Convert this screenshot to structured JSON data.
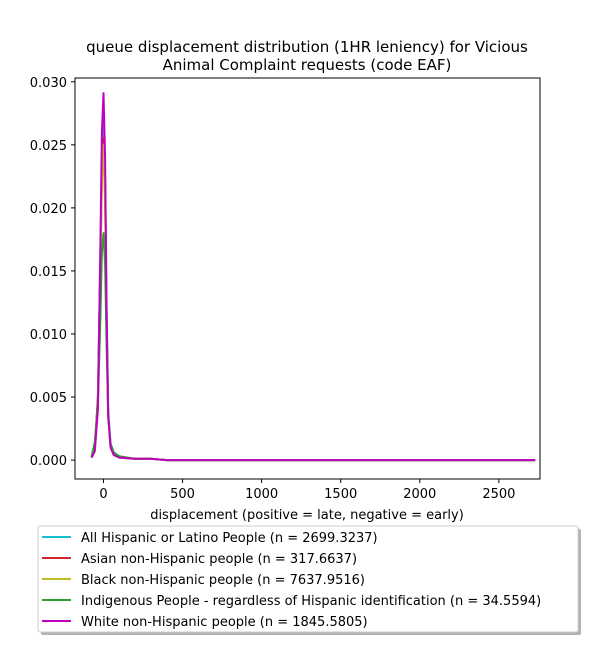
{
  "chart_data": {
    "type": "line",
    "title_lines": [
      "queue displacement distribution (1HR leniency) for Vicious",
      "Animal Complaint  requests (code EAF)"
    ],
    "xlabel": "displacement (positive = late, negative = early)",
    "ylabel": "",
    "xlim": [
      -180,
      2760
    ],
    "ylim": [
      -0.0015,
      0.0303
    ],
    "xticks": [
      0,
      500,
      1000,
      1500,
      2000,
      2500
    ],
    "xtick_labels": [
      "0",
      "500",
      "1000",
      "1500",
      "2000",
      "2500"
    ],
    "yticks": [
      0.0,
      0.005,
      0.01,
      0.015,
      0.02,
      0.025,
      0.03
    ],
    "ytick_labels": [
      "0.000",
      "0.005",
      "0.010",
      "0.015",
      "0.020",
      "0.025",
      "0.030"
    ],
    "grid": false,
    "legend_position": "below",
    "series": [
      {
        "name": "All Hispanic or Latino People (n = 2699.3237)",
        "color": "#17becf",
        "x": [
          -75,
          -55,
          -35,
          -20,
          -10,
          0,
          10,
          20,
          30,
          45,
          65,
          100,
          200,
          300,
          400,
          1000,
          2000,
          2730
        ],
        "y": [
          0.0002,
          0.0008,
          0.005,
          0.016,
          0.024,
          0.0265,
          0.022,
          0.012,
          0.004,
          0.0012,
          0.0004,
          0.0002,
          0.0001,
          0.0001,
          0.0,
          0.0,
          0.0,
          0.0
        ]
      },
      {
        "name": "Asian non-Hispanic people (n = 317.6637)",
        "color": "#d62728",
        "x": [
          -75,
          -55,
          -35,
          -20,
          -10,
          0,
          10,
          20,
          30,
          45,
          65,
          100,
          200,
          300,
          400,
          1000,
          2000,
          2730
        ],
        "y": [
          0.0002,
          0.0009,
          0.005,
          0.015,
          0.0225,
          0.0255,
          0.021,
          0.011,
          0.0035,
          0.001,
          0.0004,
          0.0002,
          0.0001,
          0.0001,
          0.0,
          0.0,
          0.0,
          0.0
        ]
      },
      {
        "name": "Black non-Hispanic people (n = 7637.9516)",
        "color": "#bcbd22",
        "x": [
          -75,
          -55,
          -35,
          -20,
          -10,
          0,
          10,
          20,
          30,
          45,
          65,
          100,
          200,
          300,
          400,
          1000,
          2000,
          2730
        ],
        "y": [
          0.0002,
          0.0008,
          0.0045,
          0.0145,
          0.022,
          0.025,
          0.0205,
          0.011,
          0.0035,
          0.0011,
          0.0004,
          0.0002,
          0.0001,
          0.0001,
          0.0,
          0.0,
          0.0,
          0.0
        ]
      },
      {
        "name": "Indigenous People - regardless of Hispanic identification (n = 34.5594)",
        "color": "#2ca02c",
        "x": [
          -75,
          -55,
          -35,
          -20,
          -10,
          0,
          10,
          20,
          30,
          45,
          65,
          100,
          200,
          300,
          400,
          1000,
          2000,
          2730
        ],
        "y": [
          0.0003,
          0.0014,
          0.0045,
          0.011,
          0.0165,
          0.018,
          0.0155,
          0.009,
          0.0035,
          0.0013,
          0.0006,
          0.0003,
          0.0001,
          0.0001,
          0.0,
          0.0,
          0.0,
          0.0
        ]
      },
      {
        "name": "White non-Hispanic people (n = 1845.5805)",
        "color": "#c000c0",
        "x": [
          -75,
          -55,
          -35,
          -20,
          -10,
          0,
          10,
          20,
          30,
          45,
          65,
          100,
          200,
          300,
          400,
          1000,
          2000,
          2730
        ],
        "y": [
          0.0002,
          0.0007,
          0.004,
          0.0165,
          0.026,
          0.0291,
          0.024,
          0.012,
          0.0035,
          0.001,
          0.0004,
          0.0002,
          0.0001,
          0.0001,
          0.0,
          0.0,
          0.0,
          0.0
        ]
      }
    ]
  }
}
